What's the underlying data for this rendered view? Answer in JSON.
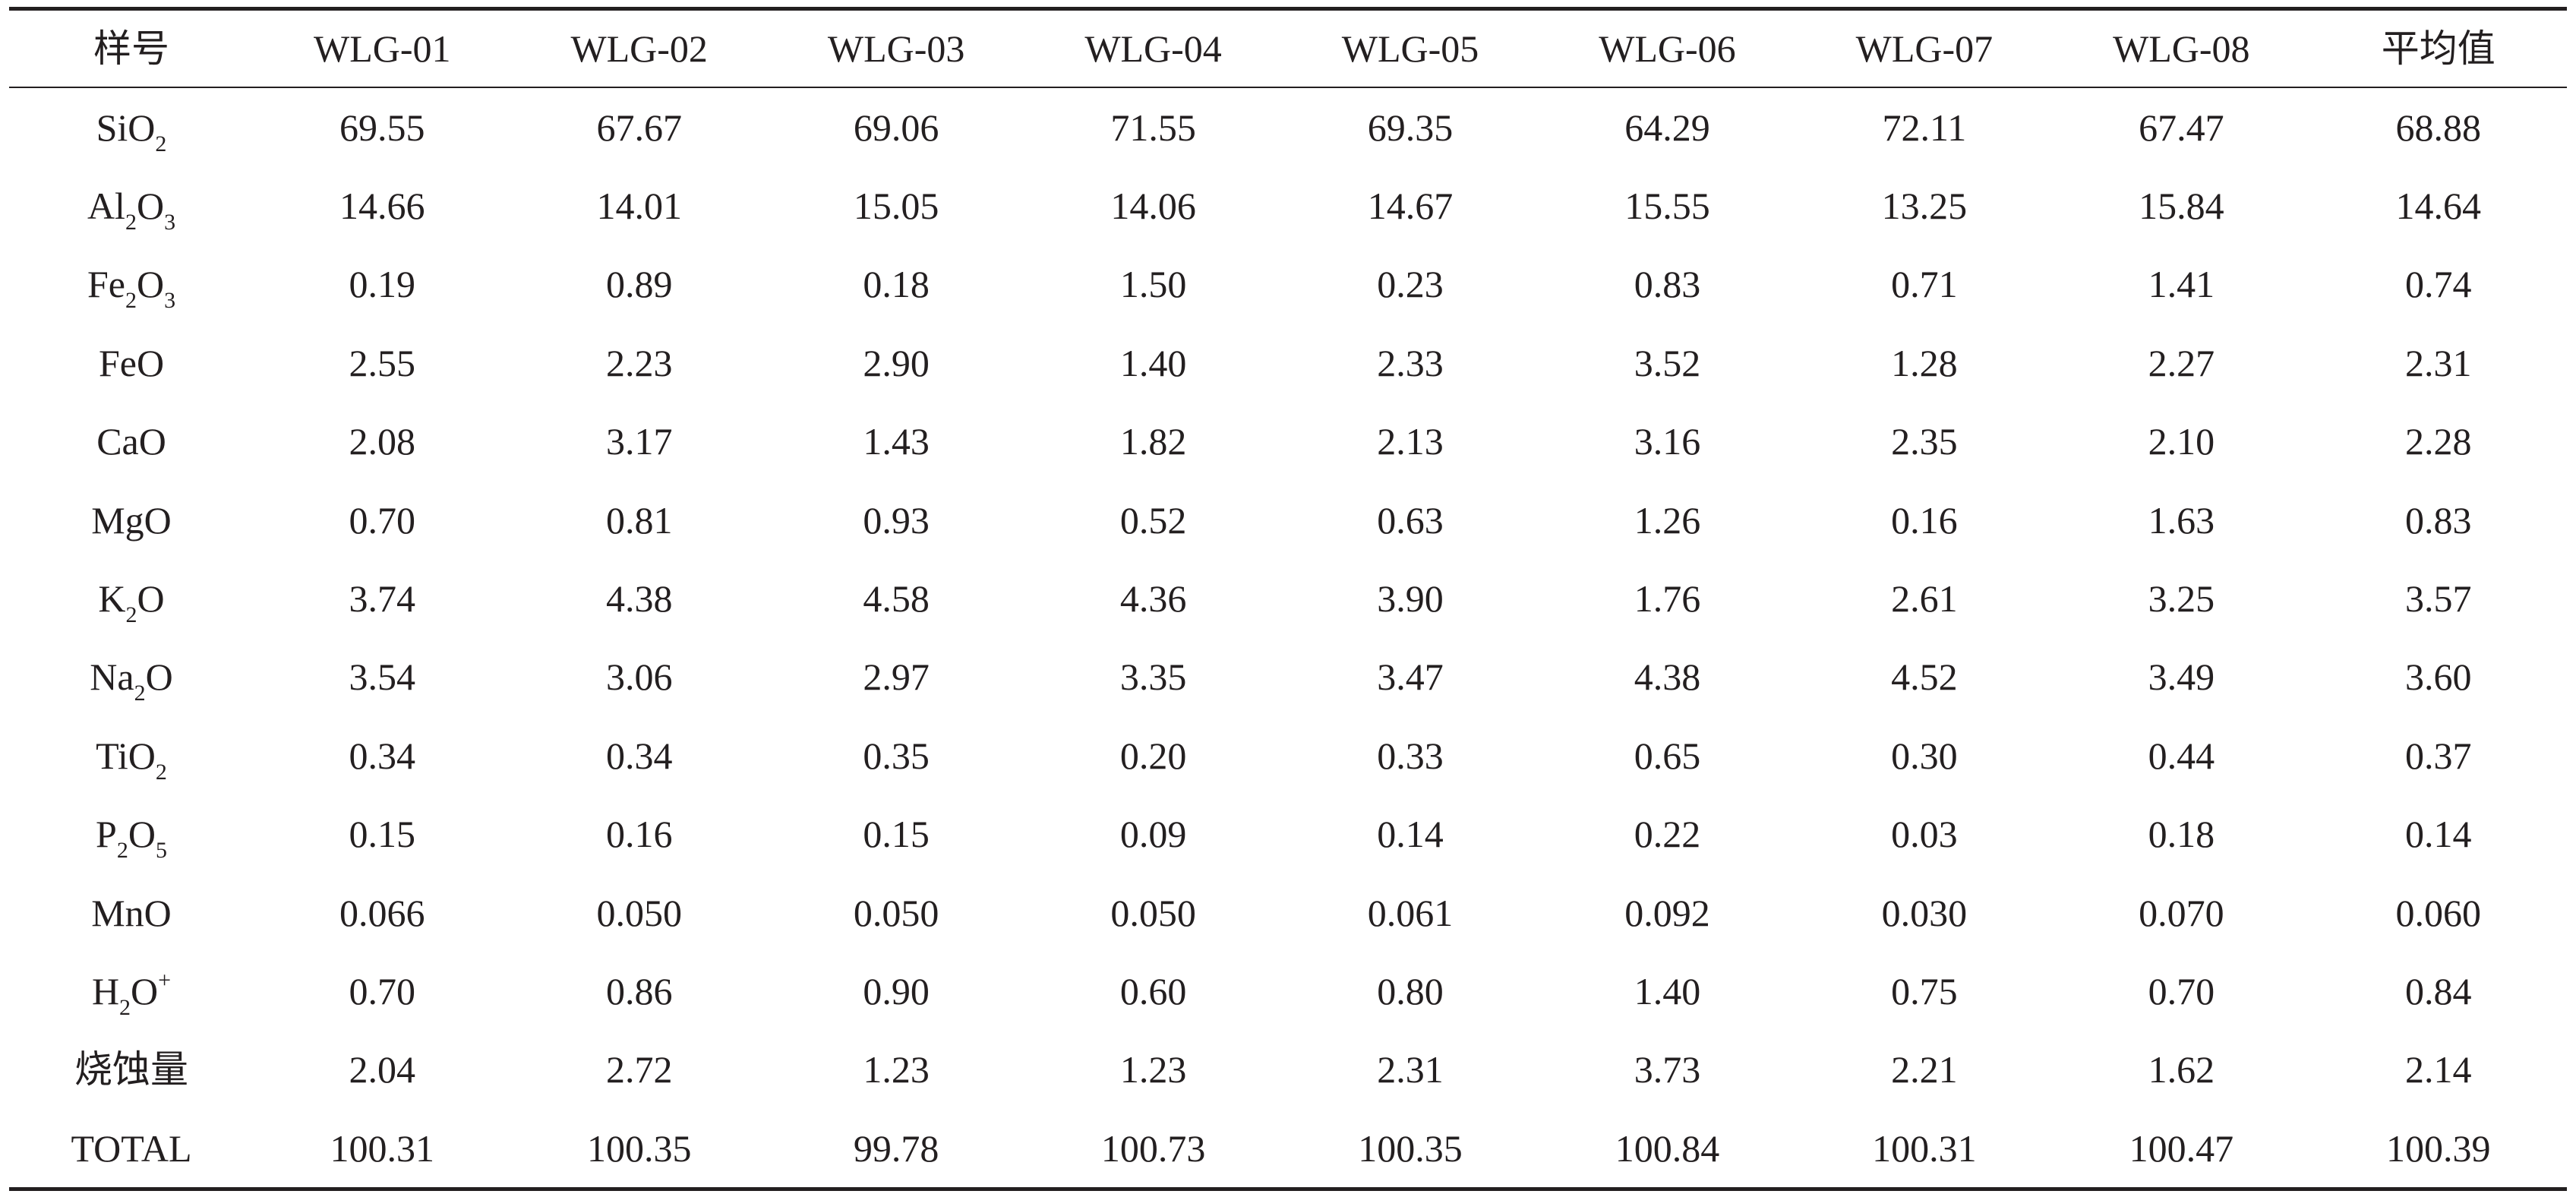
{
  "table": {
    "header": [
      "样号",
      "WLG-01",
      "WLG-02",
      "WLG-03",
      "WLG-04",
      "WLG-05",
      "WLG-06",
      "WLG-07",
      "WLG-08",
      "平均值"
    ],
    "rows": [
      {
        "label": [
          {
            "t": "SiO"
          },
          {
            "t": "2",
            "sub": true
          }
        ],
        "values": [
          "69.55",
          "67.67",
          "69.06",
          "71.55",
          "69.35",
          "64.29",
          "72.11",
          "67.47",
          "68.88"
        ]
      },
      {
        "label": [
          {
            "t": "Al"
          },
          {
            "t": "2",
            "sub": true
          },
          {
            "t": "O"
          },
          {
            "t": "3",
            "sub": true
          }
        ],
        "values": [
          "14.66",
          "14.01",
          "15.05",
          "14.06",
          "14.67",
          "15.55",
          "13.25",
          "15.84",
          "14.64"
        ]
      },
      {
        "label": [
          {
            "t": "Fe"
          },
          {
            "t": "2",
            "sub": true
          },
          {
            "t": "O"
          },
          {
            "t": "3",
            "sub": true
          }
        ],
        "values": [
          "0.19",
          "0.89",
          "0.18",
          "1.50",
          "0.23",
          "0.83",
          "0.71",
          "1.41",
          "0.74"
        ]
      },
      {
        "label": [
          {
            "t": "FeO"
          }
        ],
        "values": [
          "2.55",
          "2.23",
          "2.90",
          "1.40",
          "2.33",
          "3.52",
          "1.28",
          "2.27",
          "2.31"
        ]
      },
      {
        "label": [
          {
            "t": "CaO"
          }
        ],
        "values": [
          "2.08",
          "3.17",
          "1.43",
          "1.82",
          "2.13",
          "3.16",
          "2.35",
          "2.10",
          "2.28"
        ]
      },
      {
        "label": [
          {
            "t": "MgO"
          }
        ],
        "values": [
          "0.70",
          "0.81",
          "0.93",
          "0.52",
          "0.63",
          "1.26",
          "0.16",
          "1.63",
          "0.83"
        ]
      },
      {
        "label": [
          {
            "t": "K"
          },
          {
            "t": "2",
            "sub": true
          },
          {
            "t": "O"
          }
        ],
        "values": [
          "3.74",
          "4.38",
          "4.58",
          "4.36",
          "3.90",
          "1.76",
          "2.61",
          "3.25",
          "3.57"
        ]
      },
      {
        "label": [
          {
            "t": "Na"
          },
          {
            "t": "2",
            "sub": true
          },
          {
            "t": "O"
          }
        ],
        "values": [
          "3.54",
          "3.06",
          "2.97",
          "3.35",
          "3.47",
          "4.38",
          "4.52",
          "3.49",
          "3.60"
        ]
      },
      {
        "label": [
          {
            "t": "TiO"
          },
          {
            "t": "2",
            "sub": true
          }
        ],
        "values": [
          "0.34",
          "0.34",
          "0.35",
          "0.20",
          "0.33",
          "0.65",
          "0.30",
          "0.44",
          "0.37"
        ]
      },
      {
        "label": [
          {
            "t": "P"
          },
          {
            "t": "2",
            "sub": true
          },
          {
            "t": "O"
          },
          {
            "t": "5",
            "sub": true
          }
        ],
        "values": [
          "0.15",
          "0.16",
          "0.15",
          "0.09",
          "0.14",
          "0.22",
          "0.03",
          "0.18",
          "0.14"
        ]
      },
      {
        "label": [
          {
            "t": "MnO"
          }
        ],
        "values": [
          "0.066",
          "0.050",
          "0.050",
          "0.050",
          "0.061",
          "0.092",
          "0.030",
          "0.070",
          "0.060"
        ]
      },
      {
        "label": [
          {
            "t": "H"
          },
          {
            "t": "2",
            "sub": true
          },
          {
            "t": "O"
          },
          {
            "t": "+",
            "sup": true
          }
        ],
        "values": [
          "0.70",
          "0.86",
          "0.90",
          "0.60",
          "0.80",
          "1.40",
          "0.75",
          "0.70",
          "0.84"
        ]
      },
      {
        "label": [
          {
            "t": "烧蚀量"
          }
        ],
        "values": [
          "2.04",
          "2.72",
          "1.23",
          "1.23",
          "2.31",
          "3.73",
          "2.21",
          "1.62",
          "2.14"
        ]
      },
      {
        "label": [
          {
            "t": "TOTAL"
          }
        ],
        "values": [
          "100.31",
          "100.35",
          "99.78",
          "100.73",
          "100.35",
          "100.84",
          "100.31",
          "100.47",
          "100.39"
        ]
      }
    ]
  }
}
